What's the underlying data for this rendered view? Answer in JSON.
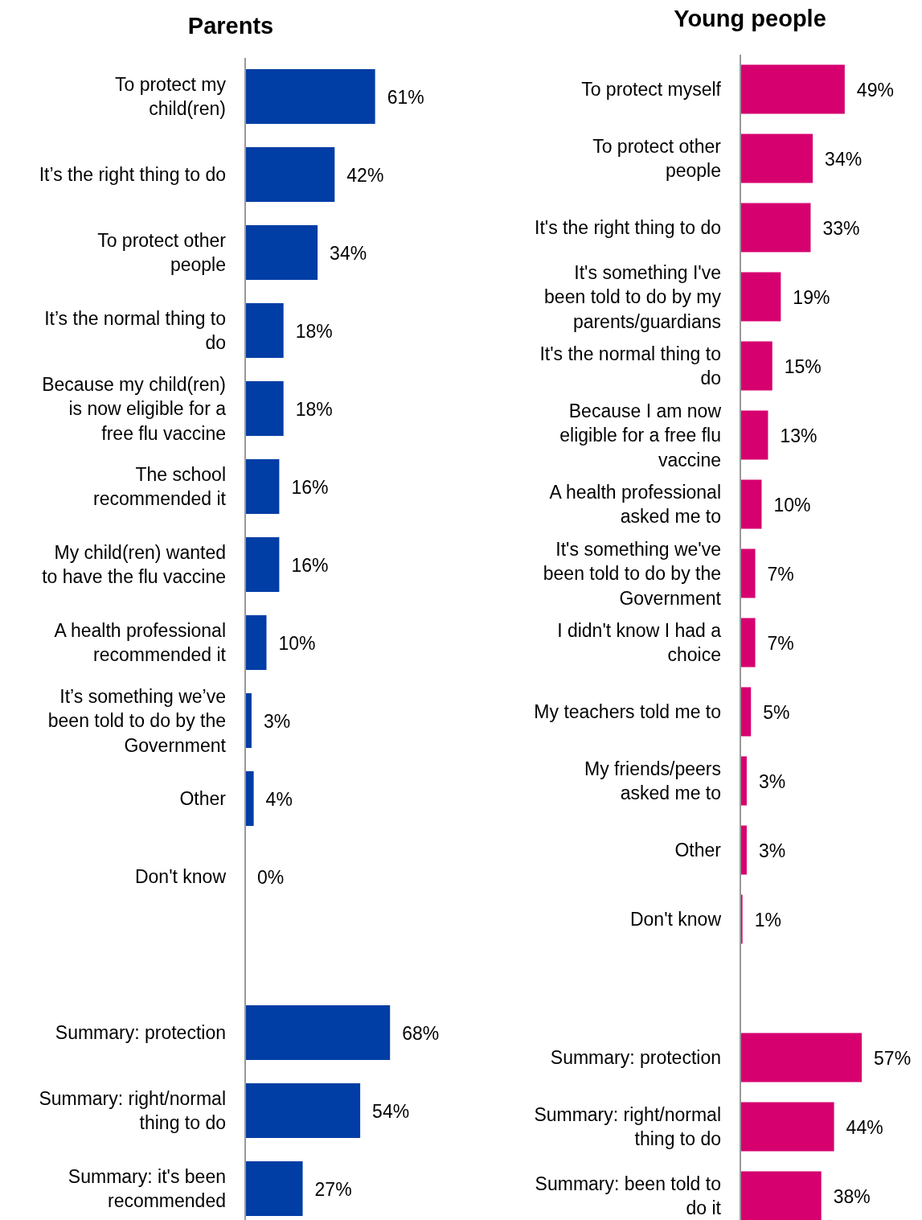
{
  "chart_data": [
    {
      "type": "bar",
      "orientation": "horizontal",
      "title": "Parents",
      "color": "#003da5",
      "categories": [
        "To protect my\nchild(ren)",
        "It’s the right thing to do",
        "To protect other\npeople",
        "It’s the normal thing to\ndo",
        "Because my child(ren)\nis now eligible for a\nfree flu vaccine",
        "The school\nrecommended it",
        "My child(ren) wanted\nto have the flu vaccine",
        "A health professional\nrecommended it",
        "It’s something we’ve\nbeen told to do by the\nGovernment",
        "Other",
        "Don't know",
        null,
        "Summary: protection",
        "Summary: right/normal\nthing to do",
        "Summary: it's been\nrecommended"
      ],
      "values": [
        61,
        42,
        34,
        18,
        18,
        16,
        16,
        10,
        3,
        4,
        0,
        null,
        68,
        54,
        27
      ],
      "value_labels": [
        "61%",
        "42%",
        "34%",
        "18%",
        "18%",
        "16%",
        "16%",
        "10%",
        "3%",
        "4%",
        "0%",
        null,
        "68%",
        "54%",
        "27%"
      ]
    },
    {
      "type": "bar",
      "orientation": "horizontal",
      "title": "Young people",
      "color": "#d6006f",
      "categories": [
        "To protect myself",
        "To protect other\npeople",
        "It's the right thing to do",
        "It's something I've\nbeen told to do by my\nparents/guardians",
        "It's the normal thing to\ndo",
        "Because I am now\neligible for a free flu\nvaccine",
        "A health professional\nasked me to",
        "It's something we've\nbeen told to do by the\nGovernment",
        "I didn't know I had a\nchoice",
        "My teachers told me to",
        "My friends/peers\nasked me to",
        "Other",
        "Don't know",
        null,
        "Summary: protection",
        "Summary: right/normal\nthing to do",
        "Summary: been told to\ndo it"
      ],
      "values": [
        49,
        34,
        33,
        19,
        15,
        13,
        10,
        7,
        7,
        5,
        3,
        3,
        1,
        null,
        57,
        44,
        38
      ],
      "value_labels": [
        "49%",
        "34%",
        "33%",
        "19%",
        "15%",
        "13%",
        "10%",
        "7%",
        "7%",
        "5%",
        "3%",
        "3%",
        "1%",
        null,
        "57%",
        "44%",
        "38%"
      ]
    }
  ]
}
